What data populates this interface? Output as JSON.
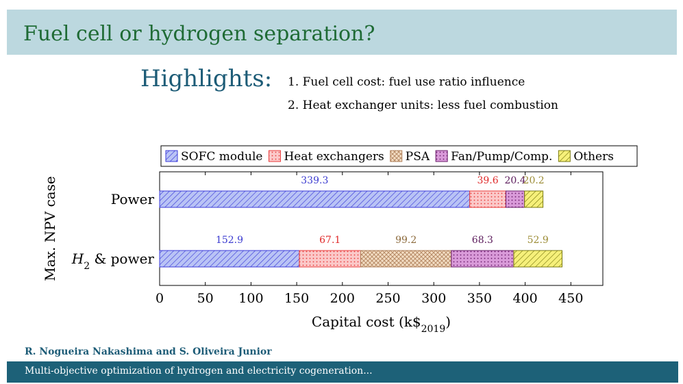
{
  "slide": {
    "title": "Fuel cell or hydrogen separation?",
    "highlights_heading": "Highlights:",
    "highlights": [
      "1. Fuel cell cost: fuel use ratio influence",
      "2. Heat exchanger units: less fuel combustion"
    ],
    "authors": "R. Nogueira Nakashima and S. Oliveira Junior",
    "footer": "Multi-objective optimization of hydrogen and electricity cogeneration..."
  },
  "chart_data": {
    "type": "bar",
    "orientation": "horizontal",
    "stacked": true,
    "categories": [
      "Power",
      "H2 & power"
    ],
    "series": [
      {
        "name": "SOFC module",
        "values": [
          339.3,
          152.9
        ],
        "color": "#3b3bd9",
        "fill": "#b9c3f5",
        "label_color": "#3a3ad0",
        "pattern": "diagonal-lines"
      },
      {
        "name": "Heat exchangers",
        "values": [
          39.6,
          67.1
        ],
        "color": "#e83b3b",
        "fill": "#fbc8c8",
        "label_color": "#e02828",
        "pattern": "dots"
      },
      {
        "name": "PSA",
        "values": [
          0,
          99.2
        ],
        "color": "#b0805a",
        "fill": "#f2dcc2",
        "label_color": "#8c6a3c",
        "pattern": "crosshatch"
      },
      {
        "name": "Fan/Pump/Comp.",
        "values": [
          20.4,
          68.3
        ],
        "color": "#6a1c6a",
        "fill": "#d99ad9",
        "label_color": "#5b1b5b",
        "pattern": "dots"
      },
      {
        "name": "Others",
        "values": [
          20.2,
          52.9
        ],
        "color": "#7a7a10",
        "fill": "#f6f07a",
        "label_color": "#9c8c36",
        "pattern": "diagonal-lines"
      }
    ],
    "labels": [
      [
        "339.3",
        "39.6",
        "",
        "20.4",
        "20.2"
      ],
      [
        "152.9",
        "67.1",
        "99.2",
        "68.3",
        "52.9"
      ]
    ],
    "xlabel": "Capital cost (k$2019)",
    "ylabel": "Max. NPV case",
    "xlim": [
      0,
      485
    ],
    "xticks": [
      0,
      50,
      100,
      150,
      200,
      250,
      300,
      350,
      400,
      450
    ],
    "legend_position": "top",
    "grid": false
  }
}
